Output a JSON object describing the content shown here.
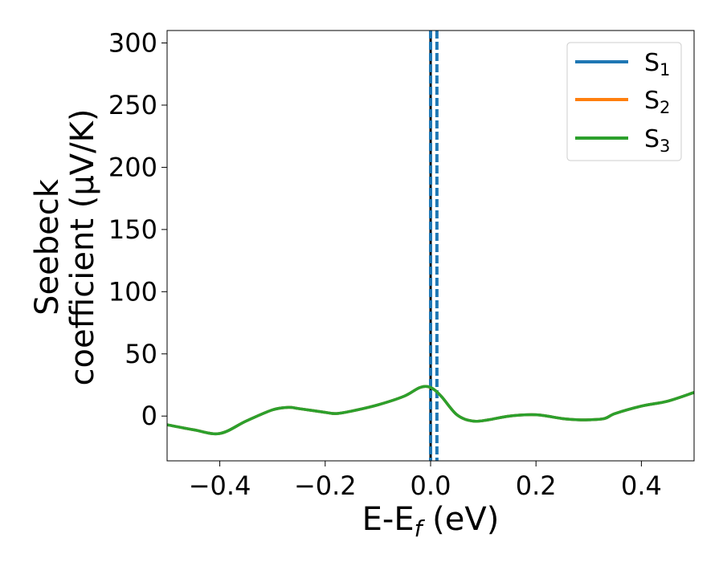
{
  "chart_data": {
    "type": "line",
    "xlabel": "E-E",
    "xlabel_sub": "f",
    "xlabel_unit": " (eV)",
    "ylabel_line1": "Seebeck",
    "ylabel_line2": "coefficient  (μV/K)",
    "xlim": [
      -0.5,
      0.5
    ],
    "ylim": [
      -36,
      310
    ],
    "xticks": [
      -0.4,
      -0.2,
      0.0,
      0.2,
      0.4
    ],
    "xtick_labels": [
      "−0.4",
      "−0.2",
      "0.0",
      "0.2",
      "0.4"
    ],
    "yticks": [
      0,
      50,
      100,
      150,
      200,
      250,
      300
    ],
    "ytick_labels": [
      "0",
      "50",
      "100",
      "150",
      "200",
      "250",
      "300"
    ],
    "grid": false,
    "legend_position": "top-right",
    "series": [
      {
        "name": "S",
        "sub": "1",
        "color": "#1f77b4"
      },
      {
        "name": "S",
        "sub": "2",
        "color": "#ff7f0e"
      },
      {
        "name": "S",
        "sub": "3",
        "color": "#2ca02c"
      }
    ],
    "curve": {
      "x": [
        -0.5,
        -0.45,
        -0.4,
        -0.35,
        -0.3,
        -0.27,
        -0.25,
        -0.2,
        -0.18,
        -0.15,
        -0.1,
        -0.05,
        -0.02,
        0.0,
        0.02,
        0.05,
        0.08,
        0.11,
        0.15,
        0.2,
        0.25,
        0.28,
        0.3,
        0.33,
        0.35,
        0.4,
        0.45,
        0.5
      ],
      "y": [
        -7,
        -11,
        -14,
        -4,
        5,
        7,
        6,
        3,
        2,
        4,
        9,
        16,
        23,
        23,
        16,
        1,
        -4,
        -3,
        0,
        1,
        -2,
        -3,
        -3,
        -2,
        2,
        8,
        12,
        19
      ]
    },
    "vlines": [
      {
        "x": 0.0,
        "color": "#000000",
        "style": "solid"
      },
      {
        "x": 0.0,
        "color": "#1f77b4",
        "style": "dashed"
      },
      {
        "x": 0.012,
        "color": "#1f77b4",
        "style": "dashed"
      }
    ]
  }
}
